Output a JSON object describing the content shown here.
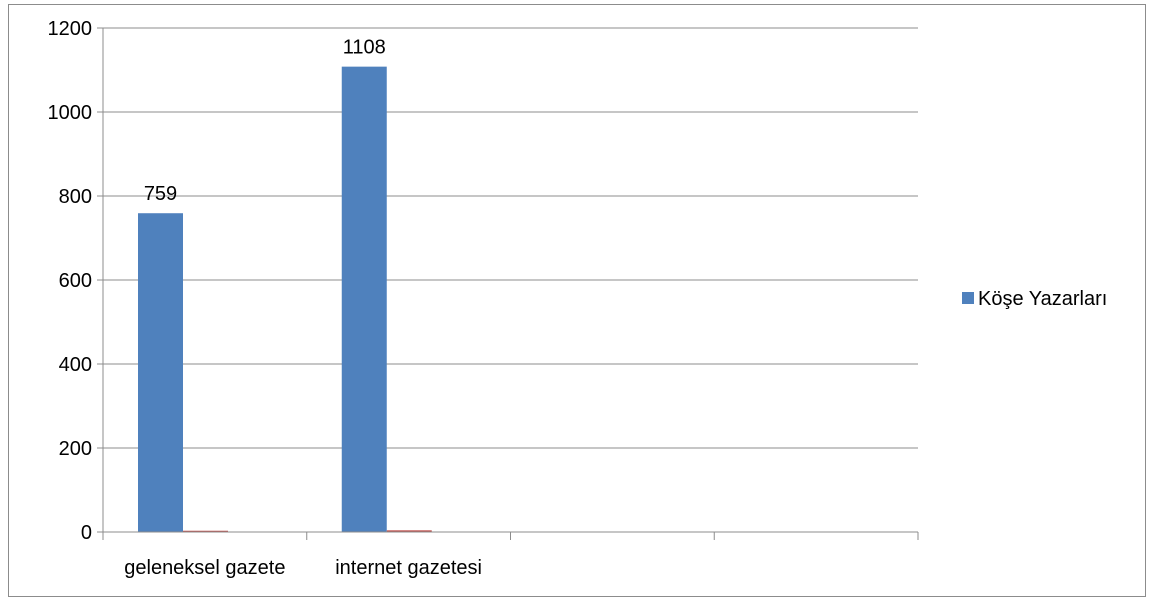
{
  "chart_data": {
    "type": "bar",
    "categories": [
      "geleneksel gazete",
      "internet gazetesi",
      "",
      ""
    ],
    "series": [
      {
        "name": "Köşe Yazarları",
        "values": [
          759,
          1108,
          null,
          null
        ],
        "color": "#4F81BD"
      },
      {
        "values": [
          3,
          4,
          0,
          0
        ],
        "color": "#C0504D"
      }
    ],
    "data_labels": [
      "759",
      "1108",
      "",
      ""
    ],
    "y_ticks": [
      "0",
      "200",
      "400",
      "600",
      "800",
      "1000",
      "1200"
    ],
    "ylim": [
      0,
      1200
    ],
    "grid": true,
    "legend": {
      "placement": "right"
    },
    "title": "",
    "xlabel": "",
    "ylabel": ""
  }
}
